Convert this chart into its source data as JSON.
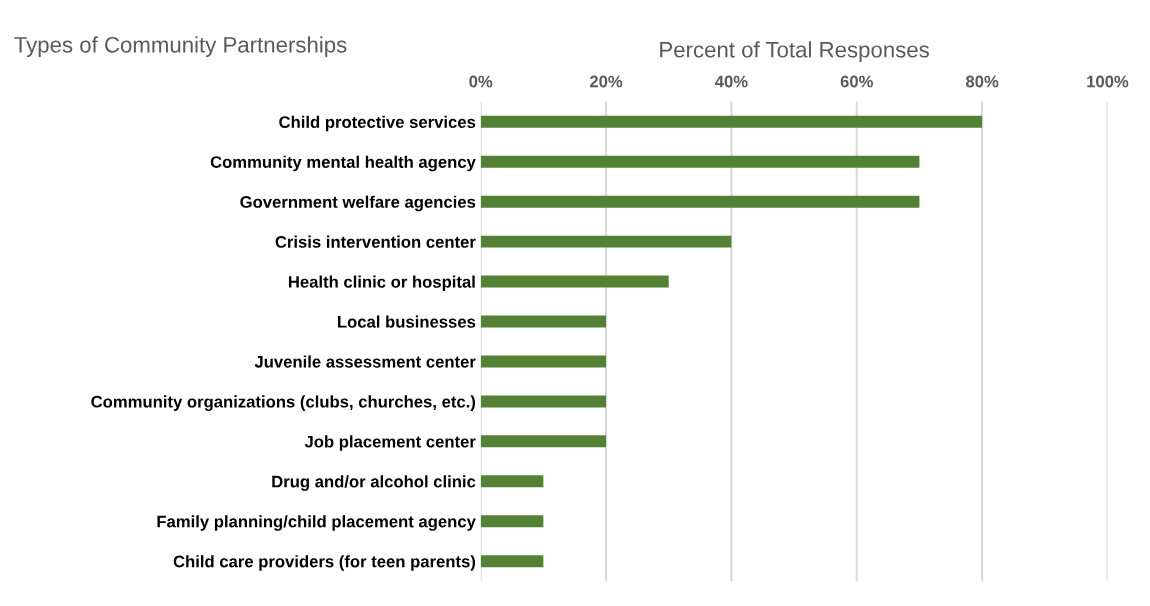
{
  "chart_data": {
    "type": "bar",
    "orientation": "horizontal",
    "title": "Percent of Total Responses",
    "ylabel": "Types of Community Partnerships",
    "categories": [
      "Child protective services",
      "Community mental health agency",
      "Government welfare agencies",
      "Crisis intervention center",
      "Health clinic or hospital",
      "Local businesses",
      "Juvenile assessment center",
      "Community organizations (clubs, churches, etc.)",
      "Job placement center",
      "Drug and/or alcohol clinic",
      "Family planning/child placement agency",
      "Child care providers (for teen parents)"
    ],
    "values": [
      80,
      70,
      70,
      40,
      30,
      20,
      20,
      20,
      20,
      10,
      10,
      10
    ],
    "color": "#548235",
    "xlim": [
      0,
      100
    ],
    "xticks": [
      {
        "value": 0,
        "label": "0%"
      },
      {
        "value": 20,
        "label": "20%"
      },
      {
        "value": 40,
        "label": "40%"
      },
      {
        "value": 60,
        "label": "60%"
      },
      {
        "value": 80,
        "label": "80%"
      },
      {
        "value": 100,
        "label": "100%"
      }
    ],
    "grid": "x",
    "legend": false
  }
}
